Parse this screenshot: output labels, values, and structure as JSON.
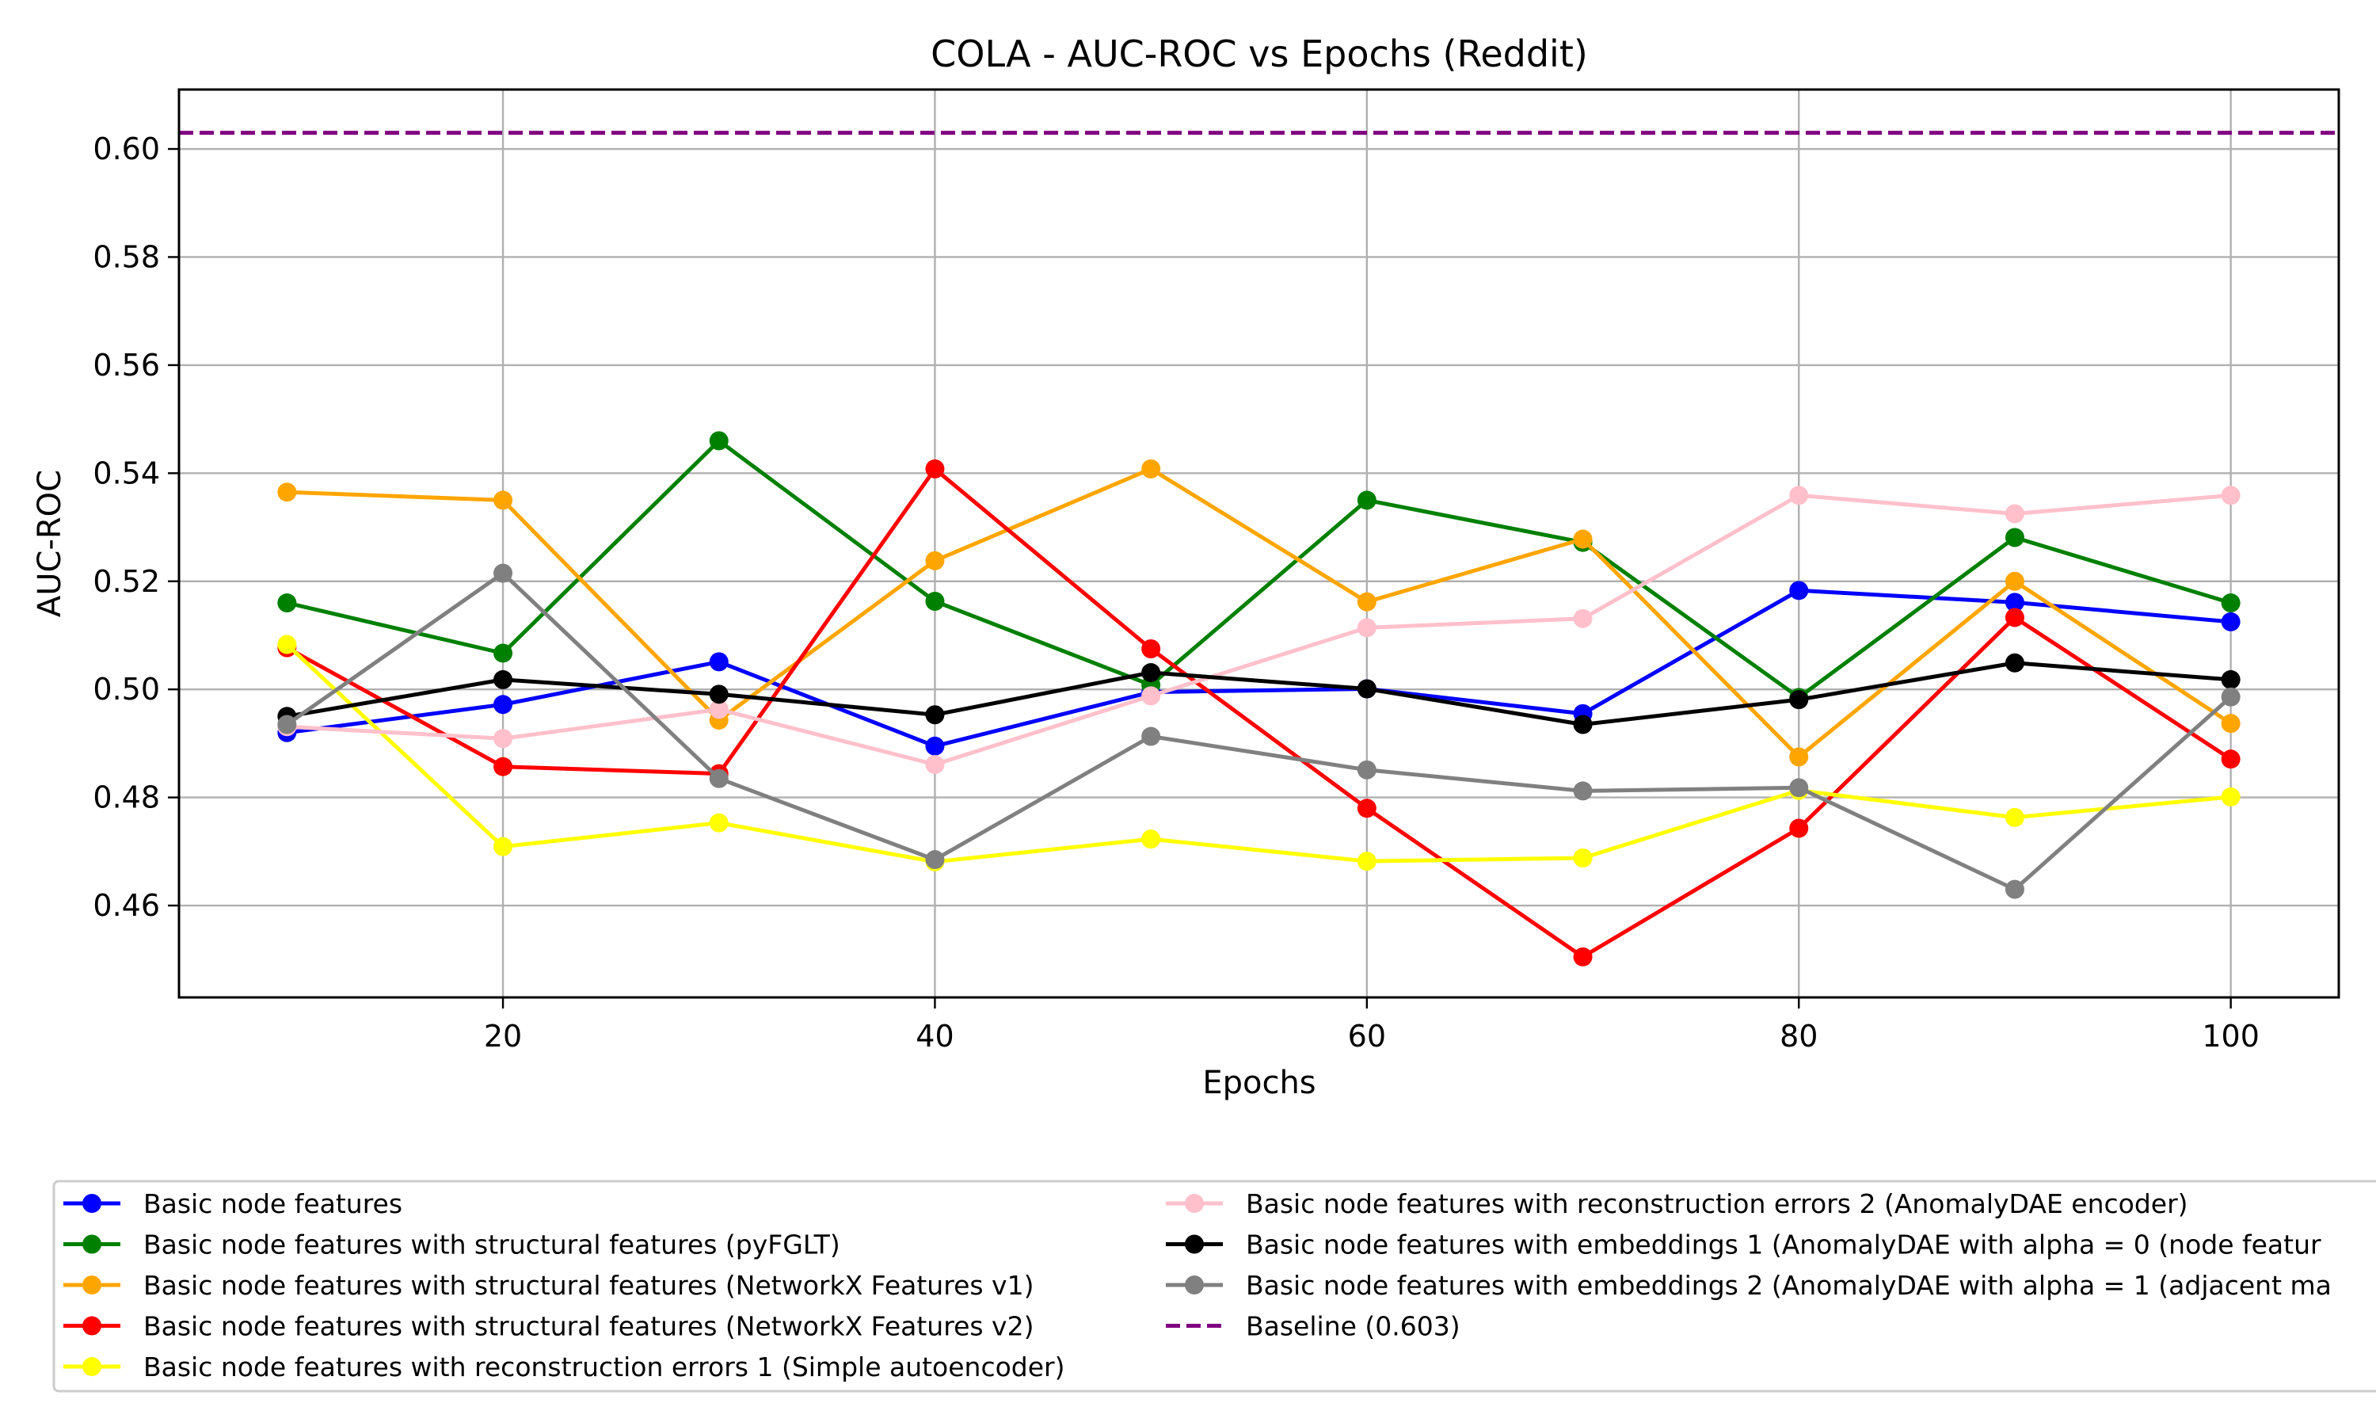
{
  "chart_data": {
    "type": "line",
    "title": "COLA - AUC-ROC vs Epochs (Reddit)",
    "xlabel": "Epochs",
    "ylabel": "AUC-ROC",
    "x": [
      10,
      20,
      30,
      40,
      50,
      60,
      70,
      80,
      90,
      100
    ],
    "xlim": [
      5,
      105
    ],
    "ylim": [
      0.443,
      0.611
    ],
    "xticks": [
      20,
      40,
      60,
      80,
      100
    ],
    "xtick_labels": [
      "20",
      "40",
      "60",
      "80",
      "100"
    ],
    "yticks": [
      0.46,
      0.48,
      0.5,
      0.52,
      0.54,
      0.56,
      0.58,
      0.6
    ],
    "ytick_labels": [
      "0.46",
      "0.48",
      "0.50",
      "0.52",
      "0.54",
      "0.56",
      "0.58",
      "0.60"
    ],
    "grid": true,
    "legend_placement": "below",
    "series": [
      {
        "name": "Basic node features",
        "color": "#0000ff",
        "values": [
          0.492,
          0.4972,
          0.5051,
          0.4895,
          0.4995,
          0.5001,
          0.4955,
          0.5183,
          0.5161,
          0.5125
        ]
      },
      {
        "name": "Basic node features with structural features (pyFGLT)",
        "color": "#008000",
        "values": [
          0.516,
          0.5067,
          0.546,
          0.5163,
          0.5008,
          0.535,
          0.5272,
          0.4985,
          0.5281,
          0.516
        ]
      },
      {
        "name": "Basic node features with structural features (NetworkX Features v1)",
        "color": "#ffa500",
        "values": [
          0.5365,
          0.535,
          0.4943,
          0.5238,
          0.5408,
          0.5162,
          0.5278,
          0.4875,
          0.52,
          0.4937
        ]
      },
      {
        "name": "Basic node features with structural features (NetworkX Features v2)",
        "color": "#ff0000",
        "values": [
          0.5077,
          0.4857,
          0.4844,
          0.5408,
          0.5075,
          0.478,
          0.4505,
          0.4743,
          0.5133,
          0.4871
        ]
      },
      {
        "name": "Basic node features with reconstruction errors 1 (Simple autoencoder)",
        "color": "#ffff00",
        "values": [
          0.5083,
          0.4709,
          0.4753,
          0.4681,
          0.4723,
          0.4682,
          0.4688,
          0.4813,
          0.4763,
          0.4801
        ]
      },
      {
        "name": "Basic node features with reconstruction errors 2 (AnomalyDAE encoder)",
        "color": "#ffc0cb",
        "values": [
          0.4931,
          0.4909,
          0.4963,
          0.4861,
          0.4988,
          0.5114,
          0.5131,
          0.5359,
          0.5325,
          0.5359
        ]
      },
      {
        "name": "Basic node features with embeddings 1 (AnomalyDAE with alpha = 0 (node featur",
        "color": "#000000",
        "values": [
          0.495,
          0.5018,
          0.4991,
          0.4953,
          0.5031,
          0.5001,
          0.4935,
          0.4981,
          0.5049,
          0.5018
        ]
      },
      {
        "name": "Basic node features with embeddings 2 (AnomalyDAE with alpha = 1 (adjacent ma",
        "color": "#808080",
        "values": [
          0.4935,
          0.5215,
          0.4835,
          0.4685,
          0.4913,
          0.4851,
          0.4812,
          0.4818,
          0.463,
          0.4986
        ]
      }
    ],
    "baseline": {
      "name": "Baseline (0.603)",
      "value": 0.603,
      "color": "#800080"
    }
  }
}
